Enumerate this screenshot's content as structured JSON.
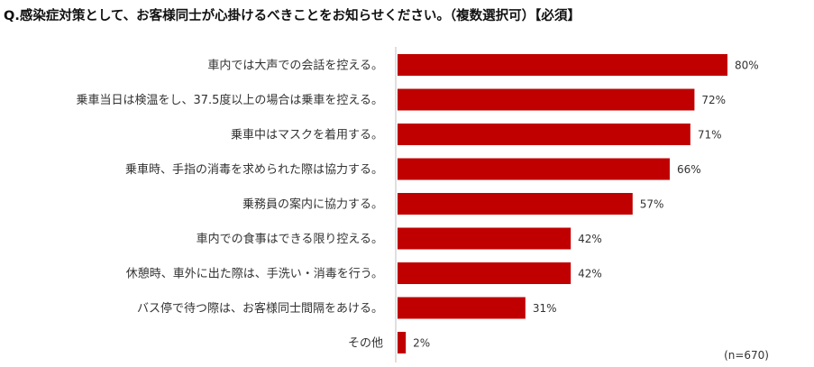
{
  "chart_data": {
    "type": "bar",
    "orientation": "horizontal",
    "title": "Q.感染症対策として、お客様同士が心掛けるべきことをお知らせください。（複数選択可）【必須】",
    "categories": [
      "車内では大声での会話を控える。",
      "乗車当日は検温をし、37.5度以上の場合は乗車を控える。",
      "乗車中はマスクを着用する。",
      "乗車時、手指の消毒を求められた際は協力する。",
      "乗務員の案内に協力する。",
      "車内での食事はできる限り控える。",
      "休憩時、車外に出た際は、手洗い・消毒を行う。",
      "バス停で待つ際は、お客様同士間隔をあける。",
      "その他"
    ],
    "values": [
      80,
      72,
      71,
      66,
      57,
      42,
      42,
      31,
      2
    ],
    "value_labels": [
      "80%",
      "72%",
      "71%",
      "66%",
      "57%",
      "42%",
      "42%",
      "31%",
      "2%"
    ],
    "unit": "%",
    "xlim": [
      0,
      100
    ],
    "bar_color": "#c00000",
    "note": "(n=670)",
    "grid": false
  }
}
